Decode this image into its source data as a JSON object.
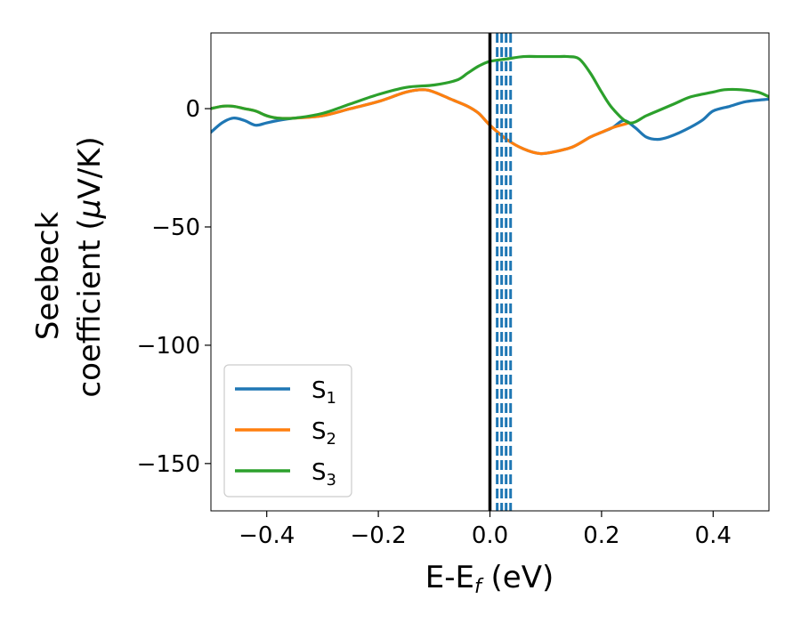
{
  "chart_data": {
    "type": "line",
    "xlabel": {
      "main": "E-E",
      "sub": "f",
      "unit": " (eV)"
    },
    "ylabel": {
      "line1": "Seebeck",
      "line2_prefix": "coefficient  (",
      "mu": "μ",
      "line2_suffix": "V/K)"
    },
    "xlim": [
      -0.5,
      0.5
    ],
    "ylim": [
      -170,
      32
    ],
    "xticks": [
      -0.4,
      -0.2,
      0.0,
      0.2,
      0.4
    ],
    "xtick_labels": [
      "−0.4",
      "−0.2",
      "0.0",
      "0.2",
      "0.4"
    ],
    "yticks": [
      0,
      -50,
      -100,
      -150
    ],
    "ytick_labels": [
      "0",
      "−50",
      "−100",
      "−150"
    ],
    "grid": false,
    "legend_position": "lower-left",
    "series": [
      {
        "name": "S1",
        "label_main": "S",
        "label_sub": "1",
        "color": "#1f77b4",
        "x": [
          -0.5,
          -0.48,
          -0.46,
          -0.44,
          -0.42,
          -0.4,
          -0.38,
          -0.35,
          -0.3,
          -0.25,
          -0.2,
          -0.15,
          -0.12,
          -0.1,
          -0.07,
          -0.04,
          -0.02,
          0.0,
          0.03,
          0.06,
          0.09,
          0.12,
          0.15,
          0.18,
          0.2,
          0.22,
          0.24,
          0.26,
          0.28,
          0.3,
          0.32,
          0.35,
          0.38,
          0.4,
          0.43,
          0.46,
          0.5
        ],
        "y": [
          -10,
          -6,
          -4,
          -5,
          -7,
          -6,
          -5,
          -4,
          -3,
          0,
          3,
          7,
          8,
          7,
          4,
          1,
          -2,
          -7,
          -13,
          -17,
          -19,
          -18,
          -16,
          -12,
          -10,
          -8,
          -5,
          -8,
          -12,
          -13,
          -12,
          -9,
          -5,
          -1,
          1,
          3,
          4
        ]
      },
      {
        "name": "S2",
        "label_main": "S",
        "label_sub": "2",
        "color": "#ff7f0e",
        "x": [
          -0.5,
          -0.48,
          -0.46,
          -0.44,
          -0.42,
          -0.4,
          -0.38,
          -0.35,
          -0.3,
          -0.25,
          -0.2,
          -0.15,
          -0.12,
          -0.1,
          -0.07,
          -0.04,
          -0.02,
          0.0,
          0.03,
          0.06,
          0.09,
          0.12,
          0.15,
          0.18,
          0.2,
          0.22,
          0.25
        ],
        "y": [
          0,
          1,
          1,
          0,
          -1,
          -3,
          -4,
          -4,
          -3,
          0,
          3,
          7,
          8,
          7,
          4,
          1,
          -2,
          -7,
          -13,
          -17,
          -19,
          -18,
          -16,
          -12,
          -10,
          -8,
          -6
        ]
      },
      {
        "name": "S3",
        "label_main": "S",
        "label_sub": "3",
        "color": "#2ca02c",
        "x": [
          -0.5,
          -0.48,
          -0.46,
          -0.44,
          -0.42,
          -0.4,
          -0.38,
          -0.35,
          -0.3,
          -0.25,
          -0.2,
          -0.15,
          -0.1,
          -0.06,
          -0.04,
          -0.02,
          0.0,
          0.03,
          0.06,
          0.09,
          0.12,
          0.14,
          0.16,
          0.18,
          0.2,
          0.22,
          0.25,
          0.28,
          0.3,
          0.33,
          0.36,
          0.4,
          0.42,
          0.45,
          0.48,
          0.5
        ],
        "y": [
          0,
          1,
          1,
          0,
          -1,
          -3,
          -4,
          -4,
          -2,
          2,
          6,
          9,
          10,
          12,
          15,
          18,
          20,
          21,
          22,
          22,
          22,
          22,
          21,
          15,
          7,
          0,
          -6,
          -3,
          -1,
          2,
          5,
          7,
          8,
          8,
          7,
          5
        ]
      }
    ],
    "vertical_lines": [
      {
        "x": 0.0,
        "color": "#000000",
        "style": "solid"
      },
      {
        "x": 0.013,
        "color": "#1f77b4",
        "style": "dashed"
      },
      {
        "x": 0.021,
        "color": "#1f77b4",
        "style": "dashed"
      },
      {
        "x": 0.029,
        "color": "#1f77b4",
        "style": "dashed"
      },
      {
        "x": 0.037,
        "color": "#1f77b4",
        "style": "dashed"
      }
    ]
  }
}
